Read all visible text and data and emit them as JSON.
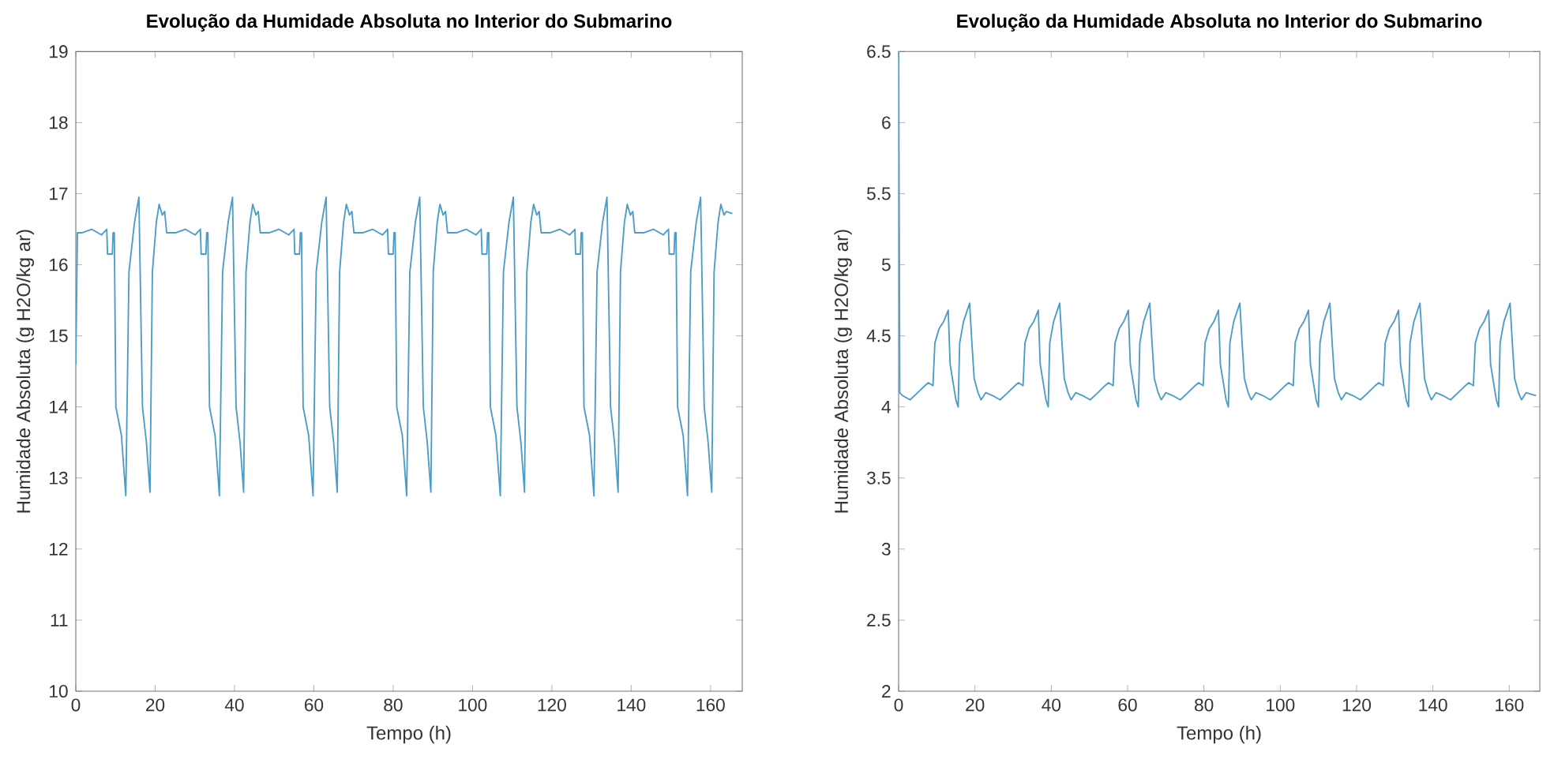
{
  "chart_data": [
    {
      "type": "line",
      "title": "Evolução da Humidade Absoluta no Interior do Submarino",
      "xlabel": "Tempo (h)",
      "ylabel": "Humidade Absoluta (g H2O/kg ar)",
      "xlim": [
        0,
        168
      ],
      "ylim": [
        10,
        19
      ],
      "xticks": [
        0,
        20,
        40,
        60,
        80,
        100,
        120,
        140,
        160
      ],
      "yticks": [
        10,
        11,
        12,
        13,
        14,
        15,
        16,
        17,
        18,
        19
      ],
      "x": [
        0,
        0.4,
        1.5,
        4,
        6.5,
        7.8,
        8,
        9.2,
        9.4,
        9.7,
        10.1,
        11.5,
        12.6,
        13.4,
        14.8,
        15.9,
        16.8,
        17.8,
        18.7,
        19.3,
        20.3,
        21,
        21.8,
        22.4,
        22.9,
        25.1,
        27.6,
        30.1,
        31.4,
        31.6,
        32.8,
        33,
        33.3,
        33.7,
        35.1,
        36.2,
        37,
        38.4,
        39.5,
        40.4,
        41.4,
        42.3,
        42.9,
        43.9,
        44.6,
        45.4,
        46,
        46.5,
        48.7,
        51.2,
        53.7,
        55,
        55.2,
        56.4,
        56.6,
        56.9,
        57.3,
        58.7,
        59.8,
        60.6,
        62,
        63.1,
        64,
        65,
        65.9,
        66.5,
        67.5,
        68.2,
        69,
        69.6,
        70.1,
        72.3,
        74.8,
        77.3,
        78.6,
        78.8,
        80,
        80.2,
        80.5,
        80.9,
        82.3,
        83.4,
        84.2,
        85.6,
        86.7,
        87.6,
        88.6,
        89.5,
        90.1,
        91.1,
        91.8,
        92.6,
        93.2,
        93.7,
        95.9,
        98.4,
        100.9,
        102.2,
        102.4,
        103.6,
        103.8,
        104.1,
        104.5,
        105.9,
        107,
        107.8,
        109.2,
        110.3,
        111.2,
        112.2,
        113.1,
        113.7,
        114.7,
        115.4,
        116.2,
        116.8,
        117.3,
        119.5,
        122,
        124.5,
        125.8,
        126,
        127.2,
        127.4,
        127.7,
        128.1,
        129.5,
        130.6,
        131.4,
        132.8,
        133.9,
        134.8,
        135.8,
        136.7,
        137.3,
        138.3,
        139,
        139.8,
        140.4,
        140.9,
        143.1,
        145.6,
        148.1,
        149.4,
        149.6,
        150.8,
        151,
        151.3,
        151.7,
        153.1,
        154.2,
        155,
        156.4,
        157.5,
        158.4,
        159.4,
        160.3,
        160.9,
        161.9,
        162.6,
        163.4,
        164,
        165.5
      ],
      "series": [
        {
          "color": "#4b9dc8",
          "values": [
            14.6,
            16.45,
            16.45,
            16.5,
            16.42,
            16.5,
            16.15,
            16.15,
            16.45,
            16.45,
            14.0,
            13.6,
            12.75,
            15.9,
            16.6,
            16.95,
            14.0,
            13.5,
            12.8,
            15.9,
            16.6,
            16.85,
            16.7,
            16.75,
            16.45,
            16.45,
            16.5,
            16.42,
            16.5,
            16.15,
            16.15,
            16.45,
            16.45,
            14.0,
            13.6,
            12.75,
            15.9,
            16.6,
            16.95,
            14.0,
            13.5,
            12.8,
            15.9,
            16.6,
            16.85,
            16.7,
            16.75,
            16.45,
            16.45,
            16.5,
            16.42,
            16.5,
            16.15,
            16.15,
            16.45,
            16.45,
            14.0,
            13.6,
            12.75,
            15.9,
            16.6,
            16.95,
            14.0,
            13.5,
            12.8,
            15.9,
            16.6,
            16.85,
            16.7,
            16.75,
            16.45,
            16.45,
            16.5,
            16.42,
            16.5,
            16.15,
            16.15,
            16.45,
            16.45,
            14.0,
            13.6,
            12.75,
            15.9,
            16.6,
            16.95,
            14.0,
            13.5,
            12.8,
            15.9,
            16.6,
            16.85,
            16.7,
            16.75,
            16.45,
            16.45,
            16.5,
            16.42,
            16.5,
            16.15,
            16.15,
            16.45,
            16.45,
            14.0,
            13.6,
            12.75,
            15.9,
            16.6,
            16.95,
            14.0,
            13.5,
            12.8,
            15.9,
            16.6,
            16.85,
            16.7,
            16.75,
            16.45,
            16.45,
            16.5,
            16.42,
            16.5,
            16.15,
            16.15,
            16.45,
            16.45,
            14.0,
            13.6,
            12.75,
            15.9,
            16.6,
            16.95,
            14.0,
            13.5,
            12.8,
            15.9,
            16.6,
            16.85,
            16.7,
            16.75,
            16.45,
            16.45,
            16.5,
            16.42,
            16.5,
            16.15,
            16.15,
            16.45,
            16.45,
            14.0,
            13.6,
            12.75,
            15.9,
            16.6,
            16.95,
            14.0,
            13.5,
            12.8,
            15.9,
            16.6,
            16.85,
            16.7,
            16.75,
            16.72
          ]
        }
      ]
    },
    {
      "type": "line",
      "title": "Evolução da Humidade Absoluta no Interior do Submarino",
      "xlabel": "Tempo (h)",
      "ylabel": "Humidade Absoluta (g H2O/kg ar)",
      "xlim": [
        0,
        168
      ],
      "ylim": [
        2,
        6.5
      ],
      "xticks": [
        0,
        20,
        40,
        60,
        80,
        100,
        120,
        140,
        160
      ],
      "yticks": [
        2,
        2.5,
        3,
        3.5,
        4,
        4.5,
        5,
        5.5,
        6,
        6.5
      ],
      "x": [
        0,
        0.3,
        1,
        3,
        5,
        6.9,
        7.8,
        9,
        9.5,
        10.6,
        11.8,
        13,
        13.5,
        14.1,
        15,
        15.6,
        16,
        17,
        18.6,
        19.2,
        19.8,
        20.8,
        21.6,
        22.8,
        24.6,
        26.6,
        28.6,
        30.5,
        31.4,
        32.6,
        33.1,
        34.2,
        35.4,
        36.6,
        37.1,
        37.7,
        38.6,
        39.2,
        39.6,
        40.6,
        42.2,
        42.8,
        43.4,
        44.4,
        45.2,
        46.4,
        48.2,
        50.2,
        52.2,
        54.1,
        55,
        56.2,
        56.7,
        57.8,
        59,
        60.2,
        60.7,
        61.3,
        62.2,
        62.8,
        63.2,
        64.2,
        65.8,
        66.4,
        67,
        68,
        68.8,
        70,
        71.8,
        73.8,
        75.8,
        77.7,
        78.6,
        79.8,
        80.3,
        81.4,
        82.6,
        83.8,
        84.3,
        84.9,
        85.8,
        86.4,
        86.8,
        87.8,
        89.4,
        90,
        90.6,
        91.6,
        92.4,
        93.6,
        95.4,
        97.4,
        99.4,
        101.3,
        102.2,
        103.4,
        103.9,
        105,
        106.2,
        107.4,
        107.9,
        108.5,
        109.4,
        110,
        110.4,
        111.4,
        113,
        113.6,
        114.2,
        115.2,
        116,
        117.2,
        119,
        121,
        123,
        124.9,
        125.8,
        127,
        127.5,
        128.6,
        129.8,
        131,
        131.5,
        132.1,
        133,
        133.6,
        134,
        135,
        136.6,
        137.2,
        137.8,
        138.8,
        139.6,
        140.8,
        142.6,
        144.6,
        146.6,
        148.5,
        149.4,
        150.6,
        151.1,
        152.2,
        153.4,
        154.6,
        155.1,
        155.7,
        156.6,
        157.2,
        157.6,
        158.6,
        160.2,
        160.8,
        161.4,
        162.4,
        163.2,
        164.4,
        167
      ],
      "series": [
        {
          "color": "#4b9dc8",
          "values": [
            6.5,
            4.1,
            4.08,
            4.05,
            4.1,
            4.15,
            4.17,
            4.15,
            4.45,
            4.55,
            4.6,
            4.68,
            4.3,
            4.2,
            4.05,
            4.0,
            4.45,
            4.6,
            4.73,
            4.45,
            4.2,
            4.1,
            4.05,
            4.1,
            4.08,
            4.05,
            4.1,
            4.15,
            4.17,
            4.15,
            4.45,
            4.55,
            4.6,
            4.68,
            4.3,
            4.2,
            4.05,
            4.0,
            4.45,
            4.6,
            4.73,
            4.45,
            4.2,
            4.1,
            4.05,
            4.1,
            4.08,
            4.05,
            4.1,
            4.15,
            4.17,
            4.15,
            4.45,
            4.55,
            4.6,
            4.68,
            4.3,
            4.2,
            4.05,
            4.0,
            4.45,
            4.6,
            4.73,
            4.45,
            4.2,
            4.1,
            4.05,
            4.1,
            4.08,
            4.05,
            4.1,
            4.15,
            4.17,
            4.15,
            4.45,
            4.55,
            4.6,
            4.68,
            4.3,
            4.2,
            4.05,
            4.0,
            4.45,
            4.6,
            4.73,
            4.45,
            4.2,
            4.1,
            4.05,
            4.1,
            4.08,
            4.05,
            4.1,
            4.15,
            4.17,
            4.15,
            4.45,
            4.55,
            4.6,
            4.68,
            4.3,
            4.2,
            4.05,
            4.0,
            4.45,
            4.6,
            4.73,
            4.45,
            4.2,
            4.1,
            4.05,
            4.1,
            4.08,
            4.05,
            4.1,
            4.15,
            4.17,
            4.15,
            4.45,
            4.55,
            4.6,
            4.68,
            4.3,
            4.2,
            4.05,
            4.0,
            4.45,
            4.6,
            4.73,
            4.45,
            4.2,
            4.1,
            4.05,
            4.1,
            4.08,
            4.05,
            4.1,
            4.15,
            4.17,
            4.15,
            4.45,
            4.55,
            4.6,
            4.68,
            4.3,
            4.2,
            4.05,
            4.0,
            4.45,
            4.6,
            4.73,
            4.45,
            4.2,
            4.1,
            4.05,
            4.1,
            4.08
          ]
        }
      ]
    }
  ]
}
